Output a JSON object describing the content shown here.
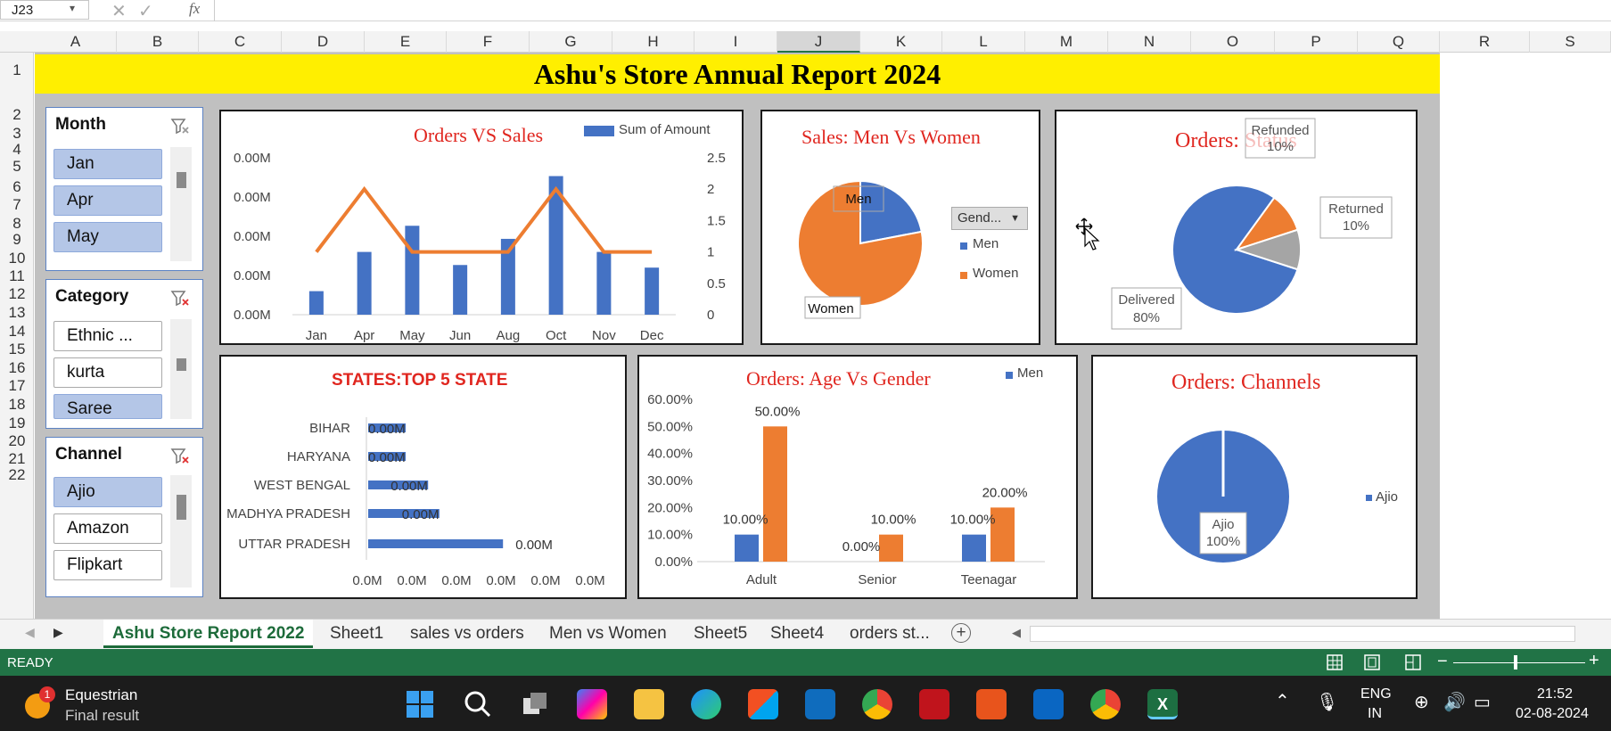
{
  "formula_bar": {
    "name_box": "J23",
    "fx": "fx"
  },
  "columns": [
    "A",
    "B",
    "C",
    "D",
    "E",
    "F",
    "G",
    "H",
    "I",
    "J",
    "K",
    "L",
    "M",
    "N",
    "O",
    "P",
    "Q",
    "R",
    "S"
  ],
  "rows": [
    "1",
    "2",
    "3",
    "4",
    "5",
    "6",
    "7",
    "8",
    "9",
    "10",
    "11",
    "12",
    "13",
    "14",
    "15",
    "16",
    "17",
    "18",
    "19",
    "20",
    "21",
    "22"
  ],
  "report_title": "Ashu's Store Annual Report 2024",
  "slicers": {
    "month": {
      "title": "Month",
      "items": [
        "Jan",
        "Apr",
        "May"
      ]
    },
    "category": {
      "title": "Category",
      "items": [
        "Ethnic ...",
        "kurta",
        "Saree"
      ]
    },
    "channel": {
      "title": "Channel",
      "items": [
        "Ajio",
        "Amazon",
        "Flipkart"
      ]
    }
  },
  "charts": {
    "orders_vs_sales": {
      "title": "Orders VS Sales",
      "legend": "Sum of Amount",
      "left_ticks": [
        "0.00M",
        "0.00M",
        "0.00M",
        "0.00M",
        "0.00M"
      ],
      "right_ticks": [
        "2.5",
        "2",
        "1.5",
        "1",
        "0.5",
        "0"
      ]
    },
    "men_vs_women": {
      "title": "Sales: Men Vs Women",
      "filter_label": "Gend...",
      "legend": [
        "Men",
        "Women"
      ],
      "labels": [
        "Men",
        "Women"
      ]
    },
    "status": {
      "title": "Orders: Status",
      "labels": [
        "Refunded",
        "10%",
        "Returned",
        "10%",
        "Delivered",
        "80%"
      ]
    },
    "top5": {
      "title": "STATES:TOP 5 STATE",
      "x_ticks": [
        "0.0M",
        "0.0M",
        "0.0M",
        "0.0M",
        "0.0M",
        "0.0M"
      ],
      "value_labels": [
        "0.00M",
        "0.00M",
        "0.00M",
        "0.00M",
        "0.00M"
      ]
    },
    "age_gender": {
      "title": "Orders: Age Vs Gender",
      "legend": "Men",
      "y_ticks": [
        "60.00%",
        "50.00%",
        "40.00%",
        "30.00%",
        "20.00%",
        "10.00%",
        "0.00%"
      ]
    },
    "channels": {
      "title": "Orders: Channels",
      "legend": "Ajio",
      "labels": [
        "Ajio",
        "100%"
      ]
    }
  },
  "chart_data": [
    {
      "type": "bar",
      "title": "Orders VS Sales",
      "categories": [
        "Jan",
        "Apr",
        "May",
        "Jun",
        "Aug",
        "Oct",
        "Nov",
        "Dec"
      ],
      "series": [
        {
          "name": "Sum of Amount",
          "values": [
            0.9,
            2.4,
            3.4,
            1.9,
            2.9,
            5.3,
            2.4,
            1.8
          ]
        },
        {
          "values": [
            1,
            2,
            1,
            1,
            1,
            2,
            1,
            1
          ]
        }
      ],
      "y2lim": [
        0,
        2.5
      ],
      "legend_position": "top-right"
    },
    {
      "type": "pie",
      "title": "Sales: Men Vs Women",
      "categories": [
        "Men",
        "Women"
      ],
      "values": [
        22,
        78
      ]
    },
    {
      "type": "pie",
      "title": "Orders: Status",
      "categories": [
        "Delivered",
        "Refunded",
        "Returned"
      ],
      "values": [
        80,
        10,
        10
      ]
    },
    {
      "type": "bar",
      "title": "STATES:TOP 5 STATE",
      "categories": [
        "BIHAR",
        "HARYANA",
        "WEST BENGAL",
        "MADHYA PRADESH",
        "UTTAR PRADESH"
      ],
      "values": [
        1.0,
        1.0,
        1.6,
        1.9,
        3.6
      ]
    },
    {
      "type": "bar",
      "title": "Orders: Age Vs Gender",
      "categories": [
        "Adult",
        "Senior",
        "Teenagar"
      ],
      "series": [
        {
          "name": "Men",
          "values": [
            10,
            0,
            10
          ]
        },
        {
          "values": [
            50,
            10,
            20
          ]
        }
      ],
      "ylim": [
        0,
        60
      ],
      "data_labels": [
        "10.00%",
        "50.00%",
        "0.00%",
        "10.00%",
        "10.00%",
        "20.00%"
      ]
    },
    {
      "type": "pie",
      "title": "Orders: Channels",
      "categories": [
        "Ajio"
      ],
      "values": [
        100
      ]
    }
  ],
  "sheet_tabs": [
    "Ashu Store Report 2022",
    "Sheet1",
    "sales vs orders",
    "Men vs Women",
    "Sheet5",
    "Sheet4",
    "orders st..."
  ],
  "status_bar": {
    "state": "READY"
  },
  "taskbar": {
    "weather_title": "Equestrian",
    "weather_sub": "Final result",
    "badge": "1",
    "lang1": "ENG",
    "lang2": "IN",
    "time": "21:52",
    "date": "02-08-2024"
  }
}
